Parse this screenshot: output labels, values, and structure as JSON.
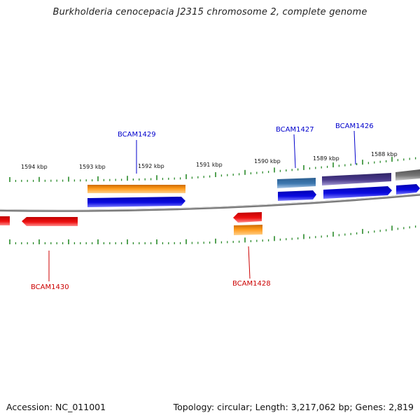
{
  "title": "Burkholderia cenocepacia J2315 chromosome 2, complete genome",
  "footer": {
    "accession": "Accession: NC_011001",
    "topology": "Topology: circular; Length: 3,217,062 bp; Genes: 2,819"
  },
  "ticks": [
    "1594 kbp",
    "1593 kbp",
    "1592 kbp",
    "1591 kbp",
    "1590 kbp",
    "1589 kbp",
    "1588 kbp"
  ],
  "genes": {
    "top_labels": [
      "BCAM1429",
      "BCAM1427",
      "BCAM1426"
    ],
    "bottom_labels": [
      "BCAM1430",
      "BCAM1428"
    ]
  },
  "colors": {
    "label_blue": "#0000cc",
    "label_red": "#cc0000",
    "tick_green": "#2a8a2a",
    "orange": "#ff9a1a",
    "blue": "#0a0ae0",
    "red": "#ee1111",
    "steel": "#3d78b0",
    "purple": "#4a3a8a",
    "gray": "#777777",
    "backbone": "#7a7a7a"
  }
}
